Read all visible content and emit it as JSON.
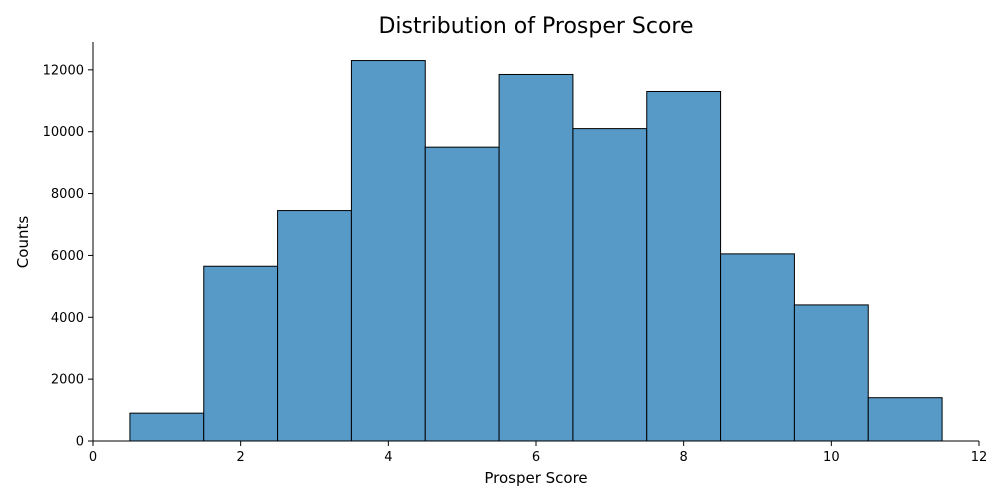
{
  "chart_data": {
    "type": "bar",
    "subtype": "histogram",
    "title": "Distribution of Prosper Score",
    "xlabel": "Prosper Score",
    "ylabel": "Counts",
    "bins": [
      {
        "x0": 0.5,
        "x1": 1.5,
        "value": 900
      },
      {
        "x0": 1.5,
        "x1": 2.5,
        "value": 5650
      },
      {
        "x0": 2.5,
        "x1": 3.5,
        "value": 7450
      },
      {
        "x0": 3.5,
        "x1": 4.5,
        "value": 12300
      },
      {
        "x0": 4.5,
        "x1": 5.5,
        "value": 9500
      },
      {
        "x0": 5.5,
        "x1": 6.5,
        "value": 11850
      },
      {
        "x0": 6.5,
        "x1": 7.5,
        "value": 10100
      },
      {
        "x0": 7.5,
        "x1": 8.5,
        "value": 11300
      },
      {
        "x0": 8.5,
        "x1": 9.5,
        "value": 6050
      },
      {
        "x0": 9.5,
        "x1": 10.5,
        "value": 4400
      },
      {
        "x0": 10.5,
        "x1": 11.5,
        "value": 1400
      }
    ],
    "xlim": [
      0,
      12
    ],
    "ylim": [
      0,
      12900
    ],
    "xticks": [
      0,
      2,
      4,
      6,
      8,
      10,
      12
    ],
    "yticks": [
      0,
      2000,
      4000,
      6000,
      8000,
      10000,
      12000
    ],
    "grid": false,
    "bar_color": "#5799c7",
    "edge_color": "#000000"
  }
}
